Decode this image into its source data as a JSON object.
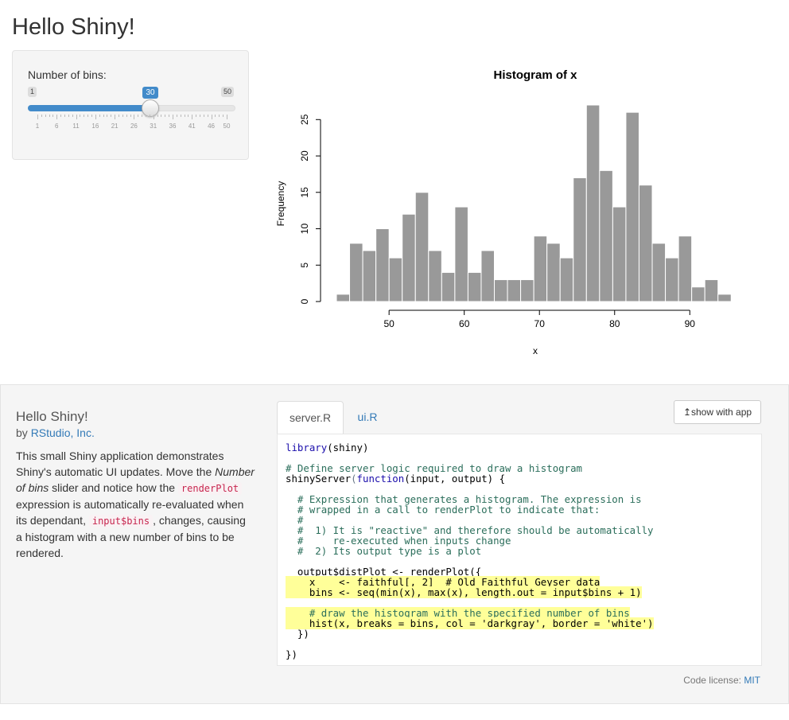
{
  "page_title": "Hello Shiny!",
  "slider": {
    "label": "Number of bins:",
    "min": 1,
    "max": 50,
    "value": 30,
    "min_label": "1",
    "max_label": "50",
    "value_label": "30",
    "ticks": [
      "1",
      "6",
      "11",
      "16",
      "21",
      "26",
      "31",
      "36",
      "41",
      "46",
      "50"
    ],
    "fill_color": "#428bca"
  },
  "chart_data": {
    "type": "bar",
    "title": "Histogram of x",
    "xlabel": "x",
    "ylabel": "Frequency",
    "bin_start": 43,
    "bin_width": 1.75,
    "values": [
      1,
      8,
      7,
      10,
      6,
      12,
      15,
      7,
      4,
      13,
      4,
      7,
      3,
      3,
      3,
      9,
      8,
      6,
      17,
      27,
      18,
      13,
      26,
      16,
      8,
      6,
      9,
      2,
      3,
      1
    ],
    "xlim": [
      43,
      96
    ],
    "ylim": [
      0,
      27
    ],
    "x_ticks": [
      50,
      60,
      70,
      80,
      90
    ],
    "y_ticks": [
      0,
      5,
      10,
      15,
      20,
      25
    ],
    "bar_color": "#999999",
    "border_color": "#ffffff"
  },
  "about": {
    "title": "Hello Shiny!",
    "by": "by",
    "author": "RStudio, Inc.",
    "desc": {
      "p1": "This small Shiny application demonstrates Shiny's automatic UI updates. Move the ",
      "em": "Number of bins",
      "p2": " slider and notice how the ",
      "code1": "renderPlot",
      "p3": " expression is automatically re-evaluated when its dependant, ",
      "code2": "input$bins",
      "p4": ", changes, causing a histogram with a new number of bins to be rendered."
    }
  },
  "tabs": [
    {
      "label": "server.R"
    },
    {
      "label": "ui.R"
    }
  ],
  "show_button": "show with app",
  "show_icon": "↥",
  "code": {
    "l1a": "library",
    "l1b": "(shiny)",
    "l2": "# Define server logic required to draw a histogram",
    "l3a": "shinyServer",
    "l3b": "(",
    "l3c": "function",
    "l3d": "(input, output) {",
    "c1": "# Expression that generates a histogram. The expression is",
    "c2": "# wrapped in a call to renderPlot to indicate that:",
    "c3": "#",
    "c4": "#  1) It is \"reactive\" and therefore should be automatically",
    "c5": "#     re-executed when inputs change",
    "c6": "#  2) Its output type is a plot",
    "o1": "output$distPlot <- renderPlot({",
    "h1": "x    <- faithful[, 2]  # Old Faithful Geyser data",
    "h2": "bins <- seq(min(x), max(x), length.out = input$bins + 1)",
    "h3": "# draw the histogram with the specified number of bins",
    "h4": "hist(x, breaks = bins, col = 'darkgray', border = 'white')",
    "e1": "})",
    "e2": "})"
  },
  "license": {
    "label": "Code license:",
    "link": "MIT"
  }
}
